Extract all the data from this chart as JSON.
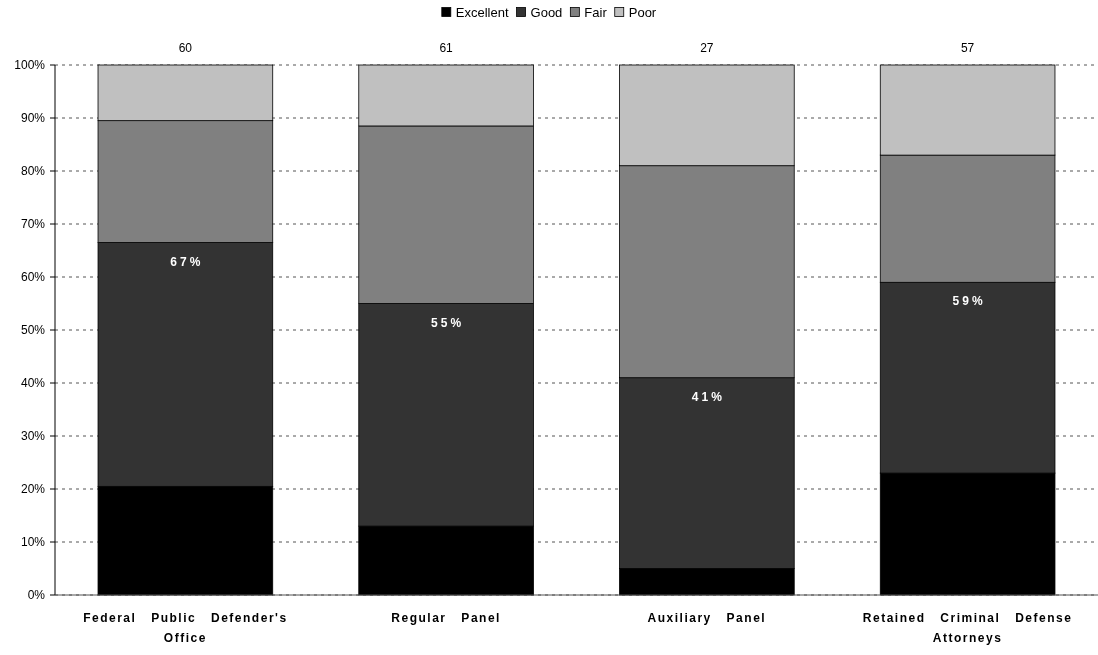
{
  "chart_data": {
    "type": "bar",
    "stacked": true,
    "categories": [
      "Federal Public Defender's Office",
      "Regular Panel",
      "Auxiliary Panel",
      "Retained Criminal Defense Attorneys"
    ],
    "series": [
      {
        "name": "Excellent",
        "color": "#000000",
        "values": [
          20.5,
          13,
          5,
          23
        ]
      },
      {
        "name": "Good",
        "color": "#333333",
        "values": [
          46,
          42,
          36,
          36
        ]
      },
      {
        "name": "Fair",
        "color": "#808080",
        "values": [
          23,
          33.5,
          40,
          24
        ]
      },
      {
        "name": "Poor",
        "color": "#c0c0c0",
        "values": [
          10.5,
          11.5,
          19,
          17
        ]
      }
    ],
    "ylim": [
      0,
      100
    ],
    "yticks": [
      {
        "value": 0,
        "label": "0%"
      },
      {
        "value": 10,
        "label": "10%"
      },
      {
        "value": 20,
        "label": "20%"
      },
      {
        "value": 30,
        "label": "30%"
      },
      {
        "value": 40,
        "label": "40%"
      },
      {
        "value": 50,
        "label": "50%"
      },
      {
        "value": 60,
        "label": "60%"
      },
      {
        "value": 70,
        "label": "70%"
      },
      {
        "value": 80,
        "label": "80%"
      },
      {
        "value": 90,
        "label": "90%"
      },
      {
        "value": 100,
        "label": "100%"
      }
    ],
    "grid": "y",
    "legend": "top",
    "annotations": [
      {
        "text": "60",
        "x": "Federal Public Defender's Office",
        "y": 100
      },
      {
        "text": "61",
        "x": "Regular Panel",
        "y": 100
      },
      {
        "text": "27",
        "x": "Auxiliary Panel",
        "y": 100
      },
      {
        "text": "57",
        "x": "Retained Criminal Defense Attorneys",
        "y": 100
      },
      {
        "text": "67%",
        "x": "Federal Public Defender's Office",
        "y": 66.5
      },
      {
        "text": "55%",
        "x": "Regular Panel",
        "y": 55
      },
      {
        "text": "41%",
        "x": "Auxiliary Panel",
        "y": 41
      },
      {
        "text": "59%",
        "x": "Retained Criminal Defense Attorneys",
        "y": 59
      }
    ]
  }
}
